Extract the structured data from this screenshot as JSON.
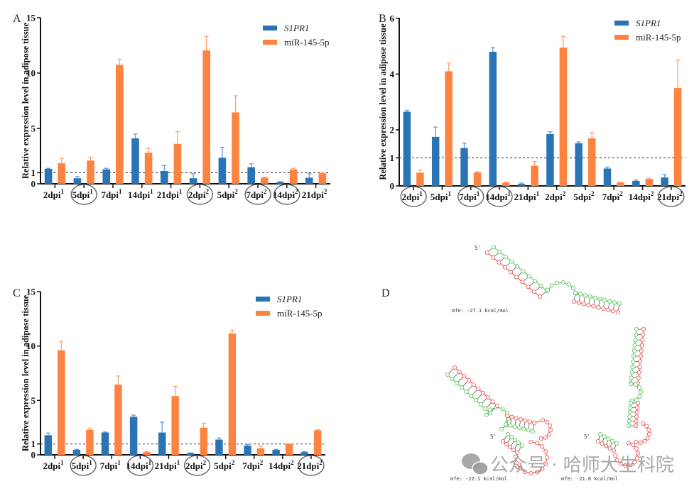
{
  "colors": {
    "S1PR1": "#2a74b5",
    "miR145": "#fd8340",
    "axis": "#111111",
    "circle": "#555555",
    "rna_green": "#4cc04c",
    "rna_red": "#ef4444"
  },
  "chart_data": [
    {
      "panel": "A",
      "type": "bar",
      "ylabel": "Relative expression level in adipose tissue",
      "yticks": [
        0,
        1,
        5,
        10,
        15
      ],
      "ylim": [
        0,
        15
      ],
      "reference_line": 1,
      "legend": [
        "S1PR1",
        "miR-145-5p"
      ],
      "legend_placement": "top-right",
      "categories": [
        {
          "base": "2dpi",
          "sup": "1",
          "circled": false
        },
        {
          "base": "5dpi",
          "sup": "1",
          "circled": true
        },
        {
          "base": "7dpi",
          "sup": "1",
          "circled": false
        },
        {
          "base": "14dpi",
          "sup": "1",
          "circled": false
        },
        {
          "base": "21dpi",
          "sup": "1",
          "circled": false
        },
        {
          "base": "2dpi",
          "sup": "2",
          "circled": true
        },
        {
          "base": "5dpi",
          "sup": "2",
          "circled": false
        },
        {
          "base": "7dpi",
          "sup": "2",
          "circled": true
        },
        {
          "base": "14dpi",
          "sup": "2",
          "circled": true
        },
        {
          "base": "21dpi",
          "sup": "2",
          "circled": false
        }
      ],
      "series": [
        {
          "name": "S1PR1",
          "values": [
            1.35,
            0.5,
            1.3,
            4.1,
            1.15,
            0.5,
            2.35,
            1.5,
            0.15,
            0.55
          ],
          "errors": [
            0.05,
            0.15,
            0.1,
            0.4,
            0.5,
            0.4,
            0.95,
            0.3,
            0.05,
            0.4
          ]
        },
        {
          "name": "miR-145-5p",
          "values": [
            1.85,
            2.1,
            10.75,
            2.8,
            3.6,
            12.05,
            6.45,
            0.55,
            1.3,
            0.95
          ],
          "errors": [
            0.45,
            0.3,
            0.5,
            0.4,
            1.1,
            1.25,
            1.5,
            0.05,
            0.1,
            0.05
          ]
        }
      ]
    },
    {
      "panel": "B",
      "type": "bar",
      "ylabel": "Relative expression level in adipose tissue",
      "yticks": [
        0,
        1,
        2,
        4,
        6
      ],
      "ylim": [
        0,
        6
      ],
      "axis_break": "segmented: 0–2 expanded, 2–6 compressed",
      "reference_line": 1,
      "legend": [
        "S1PR1",
        "miR-145-5p"
      ],
      "legend_placement": "top-right",
      "categories": [
        {
          "base": "2dpi",
          "sup": "1",
          "circled": true
        },
        {
          "base": "5dpi",
          "sup": "1",
          "circled": false
        },
        {
          "base": "7dpi",
          "sup": "1",
          "circled": true
        },
        {
          "base": "14dpi",
          "sup": "1",
          "circled": true
        },
        {
          "base": "21dpi",
          "sup": "1",
          "circled": false
        },
        {
          "base": "2dpi",
          "sup": "2",
          "circled": false
        },
        {
          "base": "5dpi",
          "sup": "2",
          "circled": false
        },
        {
          "base": "7dpi",
          "sup": "2",
          "circled": false
        },
        {
          "base": "14dpi",
          "sup": "2",
          "circled": false
        },
        {
          "base": "21dpi",
          "sup": "2",
          "circled": true
        }
      ],
      "series": [
        {
          "name": "S1PR1",
          "values": [
            2.65,
            1.75,
            1.35,
            4.8,
            0.07,
            1.85,
            1.52,
            0.62,
            0.18,
            0.3
          ],
          "errors": [
            0.05,
            0.35,
            0.18,
            0.15,
            0.03,
            0.08,
            0.05,
            0.05,
            0.03,
            0.1
          ]
        },
        {
          "name": "miR-145-5p",
          "values": [
            0.47,
            4.1,
            0.48,
            0.12,
            0.72,
            4.95,
            1.7,
            0.12,
            0.25,
            3.5
          ],
          "errors": [
            0.1,
            0.3,
            0.03,
            0.02,
            0.15,
            0.4,
            0.2,
            0.02,
            0.03,
            1.0
          ]
        }
      ]
    },
    {
      "panel": "C",
      "type": "bar",
      "ylabel": "Relative expression level in adipose tissue",
      "yticks": [
        0,
        1,
        5,
        10,
        15
      ],
      "ylim": [
        0,
        15
      ],
      "reference_line": 1,
      "legend": [
        "S1PR1",
        "miR-145-5p"
      ],
      "legend_placement": "top-right",
      "categories": [
        {
          "base": "2dpi",
          "sup": "1",
          "circled": false
        },
        {
          "base": "5dpi",
          "sup": "1",
          "circled": true
        },
        {
          "base": "7dpi",
          "sup": "1",
          "circled": false
        },
        {
          "base": "14dpi",
          "sup": "1",
          "circled": true
        },
        {
          "base": "21dpi",
          "sup": "1",
          "circled": false
        },
        {
          "base": "2dpi",
          "sup": "2",
          "circled": true
        },
        {
          "base": "5dpi",
          "sup": "2",
          "circled": false
        },
        {
          "base": "7dpi",
          "sup": "2",
          "circled": false
        },
        {
          "base": "14dpi",
          "sup": "2",
          "circled": false
        },
        {
          "base": "21dpi",
          "sup": "2",
          "circled": true
        }
      ],
      "series": [
        {
          "name": "S1PR1",
          "values": [
            1.8,
            0.45,
            2.05,
            3.5,
            2.05,
            0.15,
            1.4,
            0.85,
            0.45,
            0.25
          ],
          "errors": [
            0.2,
            0.05,
            0.05,
            0.15,
            0.95,
            0.03,
            0.15,
            0.1,
            0.05,
            0.05
          ]
        },
        {
          "name": "miR-145-5p",
          "values": [
            9.6,
            2.3,
            6.45,
            0.25,
            5.4,
            2.5,
            11.15,
            0.6,
            1.0,
            2.25
          ],
          "errors": [
            0.85,
            0.15,
            0.8,
            0.05,
            0.9,
            0.4,
            0.3,
            0.2,
            0.02,
            0.05
          ]
        }
      ]
    }
  ],
  "panel_d": {
    "letter": "D",
    "structures": [
      {
        "mfe": "mfe: -27.1 kcal/mol",
        "five_prime": "5'"
      },
      {
        "mfe": "mfe: -22.1 kcal/mol",
        "five_prime": "5'"
      },
      {
        "mfe": "mfe: -21.6 kcal/mol",
        "five_prime": "5'"
      }
    ]
  },
  "watermark": {
    "text": "公众号 · 哈师大生科院"
  }
}
